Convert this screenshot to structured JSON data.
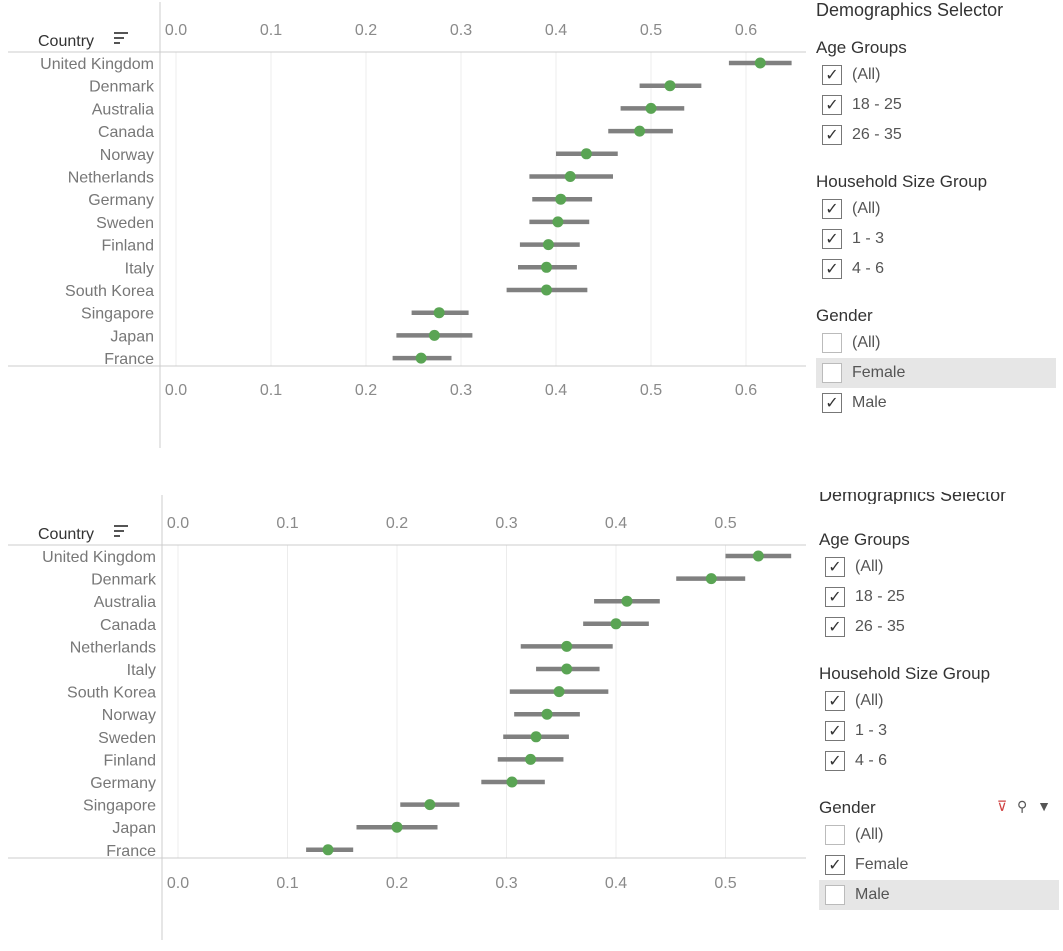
{
  "chart_data": [
    {
      "type": "dot-range",
      "row_header": "Country",
      "x_ticks": [
        "0.0",
        "0.1",
        "0.2",
        "0.3",
        "0.4",
        "0.5",
        "0.6"
      ],
      "xlim": [
        0.0,
        0.66
      ],
      "categories": [
        "United Kingdom",
        "Denmark",
        "Australia",
        "Canada",
        "Norway",
        "Netherlands",
        "Germany",
        "Sweden",
        "Finland",
        "Italy",
        "South Korea",
        "Singapore",
        "Japan",
        "France"
      ],
      "values": [
        0.615,
        0.52,
        0.5,
        0.488,
        0.432,
        0.415,
        0.405,
        0.402,
        0.392,
        0.39,
        0.39,
        0.277,
        0.272,
        0.258
      ],
      "lower": [
        0.582,
        0.488,
        0.468,
        0.455,
        0.4,
        0.372,
        0.375,
        0.372,
        0.362,
        0.36,
        0.348,
        0.248,
        0.232,
        0.228
      ],
      "upper": [
        0.648,
        0.553,
        0.535,
        0.523,
        0.465,
        0.46,
        0.438,
        0.435,
        0.425,
        0.422,
        0.433,
        0.308,
        0.312,
        0.29
      ],
      "grid": true
    },
    {
      "type": "dot-range",
      "row_header": "Country",
      "x_ticks": [
        "0.0",
        "0.1",
        "0.2",
        "0.3",
        "0.4",
        "0.5"
      ],
      "xlim": [
        0.0,
        0.57
      ],
      "categories": [
        "United Kingdom",
        "Denmark",
        "Australia",
        "Canada",
        "Netherlands",
        "Italy",
        "South Korea",
        "Norway",
        "Sweden",
        "Finland",
        "Germany",
        "Singapore",
        "Japan",
        "France"
      ],
      "values": [
        0.53,
        0.487,
        0.41,
        0.4,
        0.355,
        0.355,
        0.348,
        0.337,
        0.327,
        0.322,
        0.305,
        0.23,
        0.2,
        0.137
      ],
      "lower": [
        0.5,
        0.455,
        0.38,
        0.37,
        0.313,
        0.327,
        0.303,
        0.307,
        0.297,
        0.292,
        0.277,
        0.203,
        0.163,
        0.117
      ],
      "upper": [
        0.56,
        0.518,
        0.44,
        0.43,
        0.397,
        0.385,
        0.393,
        0.367,
        0.357,
        0.352,
        0.335,
        0.257,
        0.237,
        0.16
      ],
      "grid": true
    }
  ],
  "selectors": [
    {
      "title": "Demographics Selector",
      "groups": [
        {
          "title": "Age Groups",
          "items": [
            {
              "label": "(All)",
              "checked": true
            },
            {
              "label": "18 - 25",
              "checked": true
            },
            {
              "label": "26 - 35",
              "checked": true
            }
          ]
        },
        {
          "title": "Household Size Group",
          "items": [
            {
              "label": "(All)",
              "checked": true
            },
            {
              "label": "1 - 3",
              "checked": true
            },
            {
              "label": "4 - 6",
              "checked": true
            }
          ]
        },
        {
          "title": "Gender",
          "items": [
            {
              "label": "(All)",
              "checked": false
            },
            {
              "label": "Female",
              "checked": false
            },
            {
              "label": "Male",
              "checked": true
            }
          ]
        }
      ]
    },
    {
      "title": "Demographics Selector",
      "groups": [
        {
          "title": "Age Groups",
          "items": [
            {
              "label": "(All)",
              "checked": true
            },
            {
              "label": "18 - 25",
              "checked": true
            },
            {
              "label": "26 - 35",
              "checked": true
            }
          ]
        },
        {
          "title": "Household Size Group",
          "items": [
            {
              "label": "(All)",
              "checked": true
            },
            {
              "label": "1 - 3",
              "checked": true
            },
            {
              "label": "4 - 6",
              "checked": true
            }
          ]
        },
        {
          "title": "Gender",
          "items": [
            {
              "label": "(All)",
              "checked": false
            },
            {
              "label": "Female",
              "checked": true
            },
            {
              "label": "Male",
              "checked": false
            }
          ]
        }
      ]
    }
  ],
  "colors": {
    "point": "#5aa454",
    "range": "#808080",
    "grid": "#ececec",
    "axis": "#cccccc",
    "highlight": "#e6e6e6"
  },
  "icons": {
    "sort": "sort-descending-icon",
    "check": "check-icon",
    "clear_filter": "clear-filter-icon",
    "search": "search-icon",
    "dropdown": "dropdown-arrow-icon"
  }
}
